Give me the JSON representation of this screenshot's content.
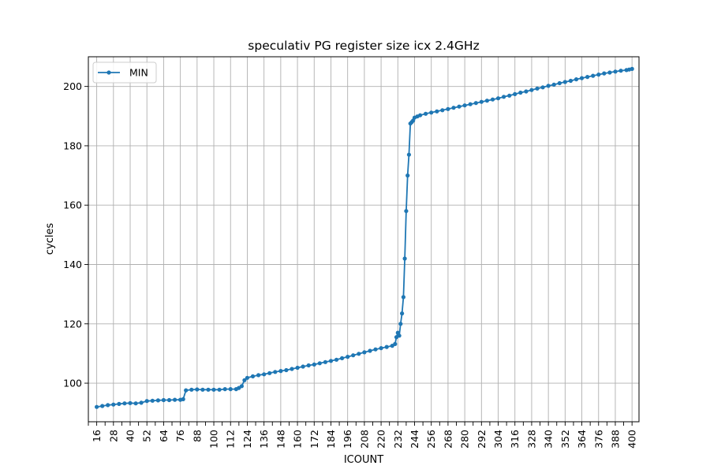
{
  "chart_data": {
    "type": "line",
    "title": "speculativ PG register size icx 2.4GHz",
    "xlabel": "ICOUNT",
    "ylabel": "cycles",
    "xlim": [
      10,
      405
    ],
    "ylim": [
      87,
      210
    ],
    "x_ticks": [
      16,
      28,
      40,
      52,
      64,
      76,
      88,
      100,
      112,
      124,
      136,
      148,
      160,
      172,
      184,
      196,
      208,
      220,
      232,
      244,
      256,
      268,
      280,
      292,
      304,
      316,
      328,
      340,
      352,
      364,
      376,
      388,
      400
    ],
    "y_ticks": [
      100,
      120,
      140,
      160,
      180,
      200
    ],
    "grid": true,
    "legend_position": "upper-left",
    "color": "#1f77b4",
    "series": [
      {
        "name": "MIN",
        "x": [
          16,
          20,
          24,
          28,
          32,
          36,
          40,
          44,
          48,
          52,
          56,
          60,
          64,
          68,
          72,
          76,
          78,
          80,
          84,
          88,
          92,
          96,
          100,
          104,
          108,
          112,
          116,
          118,
          120,
          122,
          124,
          128,
          132,
          136,
          140,
          144,
          148,
          152,
          156,
          160,
          164,
          168,
          172,
          176,
          180,
          184,
          188,
          192,
          196,
          200,
          204,
          208,
          212,
          216,
          220,
          224,
          228,
          230,
          231,
          232,
          233,
          234,
          235,
          236,
          237,
          238,
          239,
          240,
          241,
          242,
          243,
          244,
          246,
          248,
          252,
          256,
          260,
          264,
          268,
          272,
          276,
          280,
          284,
          288,
          292,
          296,
          300,
          304,
          308,
          312,
          316,
          320,
          324,
          328,
          332,
          336,
          340,
          344,
          348,
          352,
          356,
          360,
          364,
          368,
          372,
          376,
          380,
          384,
          388,
          392,
          396,
          398,
          400
        ],
        "values": [
          92,
          92.3,
          92.6,
          92.8,
          93,
          93.2,
          93.3,
          93.2,
          93.4,
          94,
          94.1,
          94.2,
          94.3,
          94.3,
          94.4,
          94.4,
          94.6,
          97.6,
          97.8,
          97.9,
          97.8,
          97.8,
          97.8,
          97.8,
          98,
          98,
          98,
          98.4,
          99,
          101,
          101.8,
          102.3,
          102.7,
          103,
          103.4,
          103.8,
          104.1,
          104.4,
          104.8,
          105.2,
          105.6,
          106,
          106.3,
          106.7,
          107.1,
          107.5,
          107.9,
          108.4,
          108.9,
          109.4,
          109.9,
          110.4,
          110.9,
          111.4,
          111.8,
          112.2,
          112.6,
          113.2,
          115.5,
          117,
          116,
          120,
          123.5,
          129,
          142,
          158,
          170,
          177,
          187.5,
          188,
          188.5,
          189.5,
          189.9,
          190.3,
          190.8,
          191.2,
          191.6,
          192,
          192.4,
          192.8,
          193.2,
          193.6,
          194,
          194.4,
          194.8,
          195.2,
          195.6,
          196,
          196.5,
          196.9,
          197.4,
          197.9,
          198.3,
          198.8,
          199.3,
          199.7,
          200.2,
          200.6,
          201.1,
          201.5,
          201.9,
          202.4,
          202.8,
          203.2,
          203.6,
          204,
          204.4,
          204.7,
          205,
          205.3,
          205.5,
          205.7,
          205.9
        ]
      }
    ]
  }
}
